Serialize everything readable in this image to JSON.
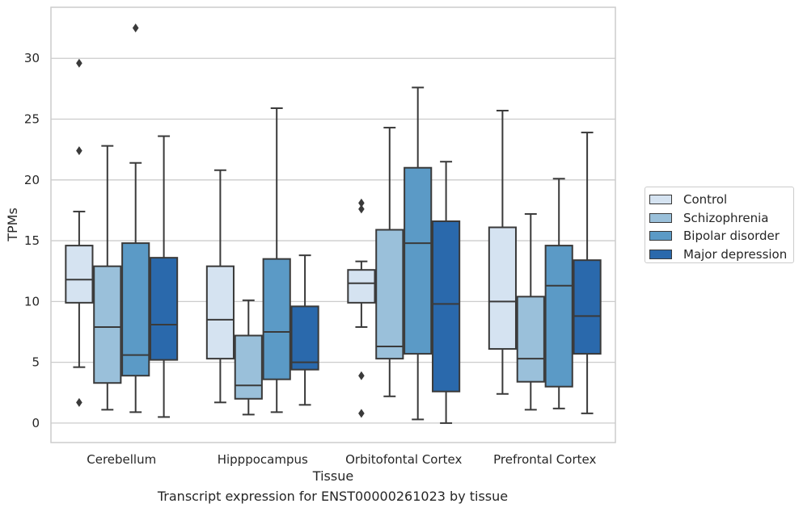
{
  "chart_data": {
    "type": "box",
    "title": "",
    "caption": "Transcript expression for ENST00000261023 by tissue",
    "xlabel": "Tissue",
    "ylabel": "TPMs",
    "ylim": [
      -1.6,
      34.2
    ],
    "yticks": [
      "0",
      "5",
      "10",
      "15",
      "20",
      "25",
      "30"
    ],
    "ytick_values": [
      0,
      5,
      10,
      15,
      20,
      25,
      30
    ],
    "grid": "horizontal",
    "legend_position": "right-outside",
    "categories": [
      "Cerebellum",
      "Hipppocampus",
      "Orbitofontal Cortex",
      "Prefrontal Cortex"
    ],
    "series": [
      {
        "name": "Control",
        "color": "#d5e3f1",
        "boxes": [
          {
            "whisker_low": 4.6,
            "q1": 9.9,
            "median": 11.8,
            "q3": 14.6,
            "whisker_high": 17.4,
            "outliers": [
              1.7,
              22.4,
              29.6
            ]
          },
          {
            "whisker_low": 1.7,
            "q1": 5.3,
            "median": 8.5,
            "q3": 12.9,
            "whisker_high": 20.8,
            "outliers": []
          },
          {
            "whisker_low": 7.9,
            "q1": 9.9,
            "median": 11.5,
            "q3": 12.6,
            "whisker_high": 13.3,
            "outliers": [
              0.8,
              3.9,
              17.6,
              18.1
            ]
          },
          {
            "whisker_low": 2.4,
            "q1": 6.1,
            "median": 10.0,
            "q3": 16.1,
            "whisker_high": 25.7,
            "outliers": []
          }
        ]
      },
      {
        "name": "Schizophrenia",
        "color": "#9ac0da",
        "boxes": [
          {
            "whisker_low": 1.1,
            "q1": 3.3,
            "median": 7.9,
            "q3": 12.9,
            "whisker_high": 22.8,
            "outliers": []
          },
          {
            "whisker_low": 0.7,
            "q1": 2.0,
            "median": 3.1,
            "q3": 7.2,
            "whisker_high": 10.1,
            "outliers": []
          },
          {
            "whisker_low": 2.2,
            "q1": 5.3,
            "median": 6.3,
            "q3": 15.9,
            "whisker_high": 24.3,
            "outliers": []
          },
          {
            "whisker_low": 1.1,
            "q1": 3.4,
            "median": 5.3,
            "q3": 10.4,
            "whisker_high": 17.2,
            "outliers": []
          }
        ]
      },
      {
        "name": "Bipolar disorder",
        "color": "#5b9ac6",
        "boxes": [
          {
            "whisker_low": 0.9,
            "q1": 3.9,
            "median": 5.6,
            "q3": 14.8,
            "whisker_high": 21.4,
            "outliers": [
              32.5
            ]
          },
          {
            "whisker_low": 0.9,
            "q1": 3.6,
            "median": 7.5,
            "q3": 13.5,
            "whisker_high": 25.9,
            "outliers": []
          },
          {
            "whisker_low": 0.3,
            "q1": 5.7,
            "median": 14.8,
            "q3": 21.0,
            "whisker_high": 27.6,
            "outliers": []
          },
          {
            "whisker_low": 1.2,
            "q1": 3.0,
            "median": 11.3,
            "q3": 14.6,
            "whisker_high": 20.1,
            "outliers": []
          }
        ]
      },
      {
        "name": "Major depression",
        "color": "#2a69ac",
        "boxes": [
          {
            "whisker_low": 0.5,
            "q1": 5.2,
            "median": 8.1,
            "q3": 13.6,
            "whisker_high": 23.6,
            "outliers": []
          },
          {
            "whisker_low": 1.5,
            "q1": 4.4,
            "median": 5.0,
            "q3": 9.6,
            "whisker_high": 13.8,
            "outliers": []
          },
          {
            "whisker_low": 0.0,
            "q1": 2.6,
            "median": 9.8,
            "q3": 16.6,
            "whisker_high": 21.5,
            "outliers": []
          },
          {
            "whisker_low": 0.8,
            "q1": 5.7,
            "median": 8.8,
            "q3": 13.4,
            "whisker_high": 23.9,
            "outliers": []
          }
        ]
      }
    ]
  }
}
